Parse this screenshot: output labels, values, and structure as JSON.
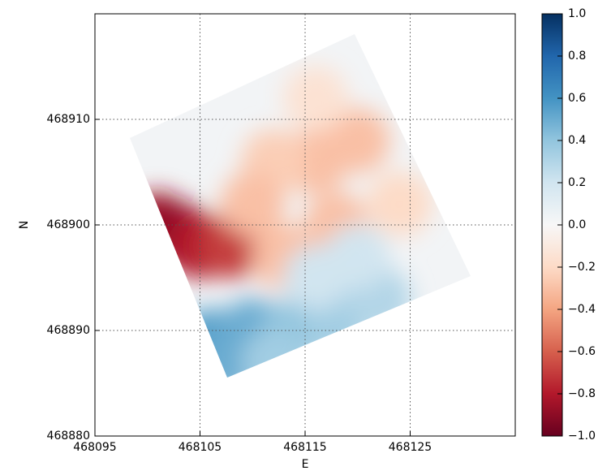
{
  "chart_data": {
    "type": "heatmap",
    "xlabel": "E",
    "ylabel": "N",
    "xlim": [
      468095,
      468135
    ],
    "ylim": [
      468880,
      468920
    ],
    "xticks": [
      468095,
      468105,
      468115,
      468125
    ],
    "yticks": [
      468880,
      468890,
      468900,
      468910
    ],
    "grid": true,
    "x": [
      468101,
      468103,
      468105,
      468108,
      468106,
      468110,
      468108,
      468114,
      468118,
      468122,
      468112,
      468116,
      468112,
      468120,
      468118,
      468113,
      468110,
      468124,
      468116,
      468116,
      468120
    ],
    "y": [
      468900,
      468899,
      468898,
      468898,
      468889,
      468890,
      468887,
      468890,
      468891,
      468893,
      468887,
      468906,
      468906,
      468908,
      468900,
      468897,
      468902,
      468902,
      468912,
      468895,
      468897
    ],
    "values": [
      -0.85,
      -0.9,
      -0.8,
      -0.7,
      0.55,
      0.5,
      0.5,
      0.4,
      0.35,
      0.3,
      0.35,
      -0.3,
      -0.25,
      -0.3,
      -0.3,
      -0.3,
      -0.3,
      -0.2,
      -0.15,
      0.2,
      0.2
    ],
    "clim": [
      -1,
      1
    ],
    "colormap": [
      "#67001f",
      "#b2182b",
      "#d6604d",
      "#f4a582",
      "#fddbc7",
      "#f7f7f7",
      "#d1e5f0",
      "#92c5de",
      "#4393c3",
      "#2166ac",
      "#053061"
    ],
    "cticks": [
      {
        "value": -1,
        "label": "−1.0"
      },
      {
        "value": -0.8,
        "label": "−0.8"
      },
      {
        "value": -0.6,
        "label": "−0.6"
      },
      {
        "value": -0.4,
        "label": "−0.4"
      },
      {
        "value": -0.2,
        "label": "−0.2"
      },
      {
        "value": 0,
        "label": "0.0"
      },
      0.2,
      0.4,
      0.6,
      0.8,
      {
        "value": 1,
        "label": "1.0"
      }
    ]
  }
}
